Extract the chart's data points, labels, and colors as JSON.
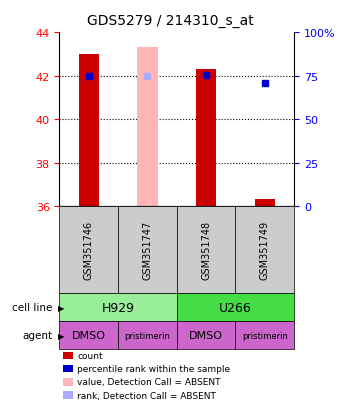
{
  "title": "GDS5279 / 214310_s_at",
  "samples": [
    "GSM351746",
    "GSM351747",
    "GSM351748",
    "GSM351749"
  ],
  "cell_lines": [
    [
      "H929",
      2
    ],
    [
      "U266",
      2
    ]
  ],
  "agents": [
    "DMSO",
    "pristimerin",
    "DMSO",
    "pristimerin"
  ],
  "cell_line_colors": {
    "H929": "#99EE99",
    "U266": "#44DD44"
  },
  "agent_color": "#CC66CC",
  "sample_bg_color": "#CCCCCC",
  "ylim": [
    36,
    44
  ],
  "yleft_ticks": [
    36,
    38,
    40,
    42,
    44
  ],
  "yright_ticks": [
    0,
    25,
    50,
    75,
    100
  ],
  "yright_labels": [
    "0",
    "25",
    "50",
    "75",
    "100%"
  ],
  "bar_data": [
    {
      "x": 1,
      "count": 43.0,
      "rank_pct": 75,
      "absent": false,
      "bar_color": "#CC0000",
      "rank_color": "#0000CC"
    },
    {
      "x": 2,
      "count": 43.3,
      "rank_pct": 75,
      "absent": true,
      "bar_color": "#FFB6B6",
      "rank_color": "#AAAAFF"
    },
    {
      "x": 3,
      "count": 42.3,
      "rank_pct": 75.5,
      "absent": false,
      "bar_color": "#CC0000",
      "rank_color": "#0000CC"
    },
    {
      "x": 4,
      "count": 36.3,
      "rank_pct": 71,
      "absent": false,
      "bar_color": "#CC0000",
      "rank_color": "#0000CC"
    }
  ],
  "ybase": 36,
  "legend_items": [
    {
      "color": "#CC0000",
      "label": "count"
    },
    {
      "color": "#0000CC",
      "label": "percentile rank within the sample"
    },
    {
      "color": "#FFB6B6",
      "label": "value, Detection Call = ABSENT"
    },
    {
      "color": "#AAAAFF",
      "label": "rank, Detection Call = ABSENT"
    }
  ]
}
